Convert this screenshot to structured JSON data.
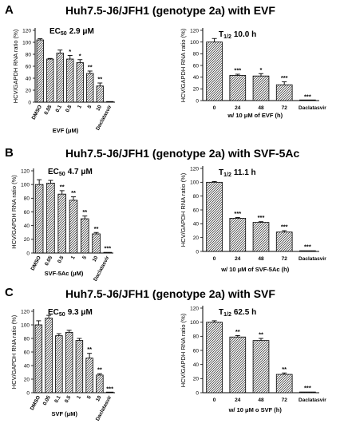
{
  "panels": [
    {
      "letter": "A",
      "title": "Huh7.5-J6/JFH1 (genotype 2a) with EVF",
      "charts": [
        {
          "annotation": "EC",
          "annotation_sub": "50",
          "annotation_value": "2.9 μM",
          "chart_data": {
            "type": "bar",
            "ylabel": "HCV/GAPDH RNA ratio (%)",
            "xlabel": "EVF (μM)",
            "ylim": [
              0,
              120
            ],
            "yticks": [
              0,
              20,
              40,
              60,
              80,
              100,
              120
            ],
            "categories": [
              "DMSO",
              "0.05",
              "0.1",
              "0.5",
              "1",
              "5",
              "10",
              "Daclatasvir"
            ],
            "values": [
              104,
              72,
              82,
              72,
              66,
              48,
              27,
              0
            ],
            "errors": [
              2,
              1,
              5,
              6,
              5,
              4,
              5,
              0
            ],
            "significance": [
              "",
              "",
              "",
              "*",
              "*",
              "**",
              "**",
              ""
            ]
          }
        },
        {
          "annotation": "T",
          "annotation_sub": "1/2",
          "annotation_value": "10.0 h",
          "chart_data": {
            "type": "bar",
            "ylabel": "HCV/GAPDH RNA ratio (%)",
            "xlabel": "w/ 10 μM of EVF (h)",
            "ylim": [
              0,
              120
            ],
            "yticks": [
              0,
              20,
              40,
              60,
              80,
              100,
              120
            ],
            "categories": [
              "0",
              "24",
              "48",
              "72",
              "Daclatasvir"
            ],
            "values": [
              100,
              43,
              42,
              27,
              0
            ],
            "errors": [
              6,
              2,
              4,
              5,
              0
            ],
            "significance": [
              "",
              "***",
              "*",
              "***",
              "***"
            ]
          }
        }
      ]
    },
    {
      "letter": "B",
      "title": "Huh7.5-J6/JFH1 (genotype 2a) with SVF-5Ac",
      "charts": [
        {
          "annotation": "EC",
          "annotation_sub": "50",
          "annotation_value": "4.7 μM",
          "chart_data": {
            "type": "bar",
            "ylabel": "HCV/GAPDH RNA ratio (%)",
            "xlabel": "SVF-5Ac (μM)",
            "ylim": [
              0,
              120
            ],
            "yticks": [
              0,
              20,
              40,
              60,
              80,
              100,
              120
            ],
            "categories": [
              "DMSO",
              "0.05",
              "0.5",
              "1",
              "5",
              "10",
              "Daclatasvir"
            ],
            "values": [
              100,
              102,
              86,
              77,
              50,
              28,
              1
            ],
            "errors": [
              7,
              4,
              5,
              5,
              4,
              2,
              0
            ],
            "significance": [
              "",
              "",
              "**",
              "**",
              "**",
              "**",
              "***"
            ]
          }
        },
        {
          "annotation": "T",
          "annotation_sub": "1/2",
          "annotation_value": "11.1 h",
          "chart_data": {
            "type": "bar",
            "ylabel": "HCV/GAPDH RNA ratio (%)",
            "xlabel": "w/ 10 μM of SVF-5Ac (h)",
            "ylim": [
              0,
              120
            ],
            "yticks": [
              0,
              20,
              40,
              60,
              80,
              100,
              120
            ],
            "categories": [
              "0",
              "24",
              "48",
              "72",
              "Daclatasvir"
            ],
            "values": [
              100,
              48,
              42,
              28,
              1
            ],
            "errors": [
              1,
              1,
              1,
              2,
              0
            ],
            "significance": [
              "",
              "***",
              "***",
              "***",
              "***"
            ]
          }
        }
      ]
    },
    {
      "letter": "C",
      "title": "Huh7.5-J6/JFH1 (genotype 2a) with SVF",
      "charts": [
        {
          "annotation": "EC",
          "annotation_sub": "50",
          "annotation_value": "9.3 μM",
          "chart_data": {
            "type": "bar",
            "ylabel": "HCV/GAPDH RNA ratio (%)",
            "xlabel": "SVF (μM)",
            "ylim": [
              0,
              120
            ],
            "yticks": [
              0,
              20,
              40,
              60,
              80,
              100,
              120
            ],
            "categories": [
              "DMSO",
              "0.05",
              "0.1",
              "0.5",
              "1",
              "5",
              "10",
              "Daclatasvir"
            ],
            "values": [
              100,
              110,
              84,
              89,
              77,
              51,
              26,
              0
            ],
            "errors": [
              6,
              4,
              3,
              3,
              3,
              7,
              2,
              0
            ],
            "significance": [
              "",
              "",
              "",
              "",
              "",
              "**",
              "**",
              "***"
            ]
          }
        },
        {
          "annotation": "T",
          "annotation_sub": "1/2",
          "annotation_value": "62.5 h",
          "chart_data": {
            "type": "bar",
            "ylabel": "HCV/GAPDH RNA ratio (%)",
            "xlabel": "w/ 10 μM o SVF (h)",
            "ylim": [
              0,
              120
            ],
            "yticks": [
              0,
              20,
              40,
              60,
              80,
              100,
              120
            ],
            "categories": [
              "0",
              "24",
              "48",
              "72",
              "Daclatasvir"
            ],
            "values": [
              100,
              79,
              74,
              26,
              1
            ],
            "errors": [
              2,
              2,
              3,
              2,
              0
            ],
            "significance": [
              "",
              "**",
              "**",
              "**",
              "***"
            ]
          }
        }
      ]
    }
  ]
}
